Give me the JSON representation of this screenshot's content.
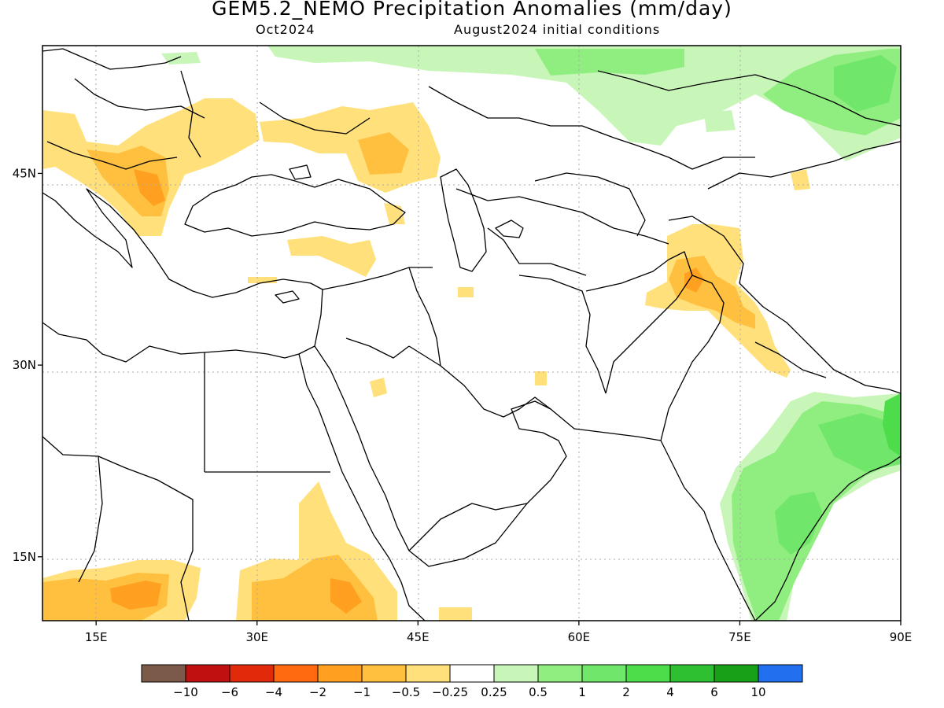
{
  "title": "GEM5.2_NEMO Precipitation Anomalies (mm/day)",
  "subtitle_left": "Oct2024",
  "subtitle_right": "August2024 initial conditions",
  "map": {
    "lon_range": [
      10,
      90
    ],
    "lat_range": [
      10,
      55
    ],
    "lon_ticks": [
      {
        "value": 15,
        "label": "15E"
      },
      {
        "value": 30,
        "label": "30E"
      },
      {
        "value": 45,
        "label": "45E"
      },
      {
        "value": 60,
        "label": "60E"
      },
      {
        "value": 75,
        "label": "75E"
      },
      {
        "value": 90,
        "label": "90E"
      }
    ],
    "lat_ticks": [
      {
        "value": 15,
        "label": "15N"
      },
      {
        "value": 30,
        "label": "30N"
      },
      {
        "value": 45,
        "label": "45N"
      }
    ],
    "grid": true
  },
  "colorbar": {
    "colors": [
      "#7b5a4a",
      "#c01010",
      "#e02a0a",
      "#ff6a10",
      "#ffa020",
      "#ffc040",
      "#ffe07a",
      "#ffffff",
      "#c8f5b8",
      "#90ee80",
      "#70e66a",
      "#4ddc4a",
      "#2ec030",
      "#18a018",
      "#2070f0"
    ],
    "labels": [
      "−10",
      "−6",
      "−4",
      "−2",
      "−1",
      "−0.5",
      "−0.25",
      "0.25",
      "0.5",
      "1",
      "2",
      "4",
      "6",
      "10"
    ]
  }
}
